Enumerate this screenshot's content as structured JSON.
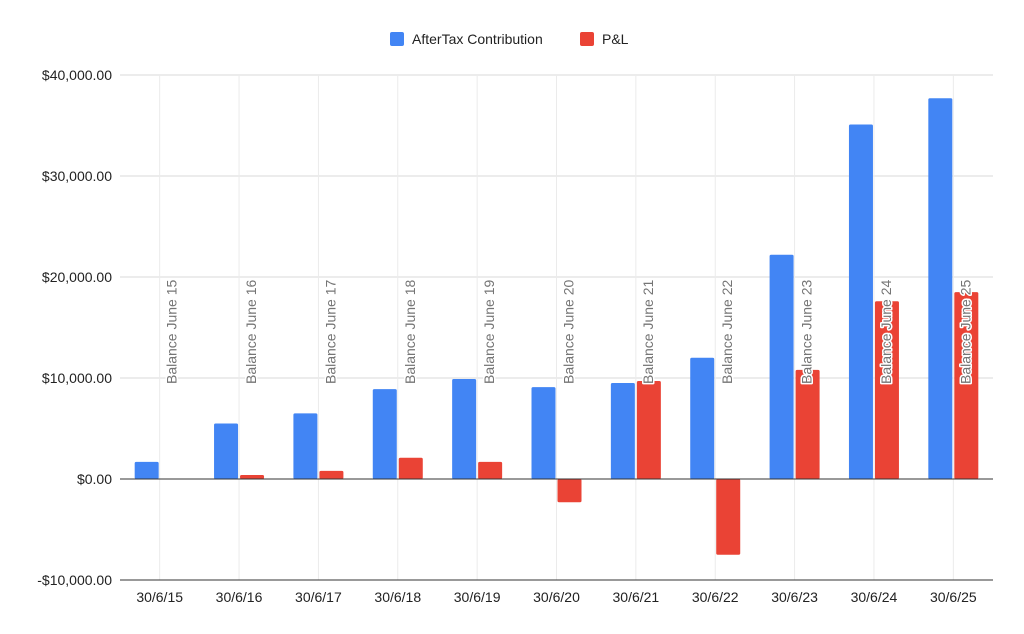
{
  "chart_data": {
    "type": "bar",
    "categories": [
      "30/6/15",
      "30/6/16",
      "30/6/17",
      "30/6/18",
      "30/6/19",
      "30/6/20",
      "30/6/21",
      "30/6/22",
      "30/6/23",
      "30/6/24",
      "30/6/25"
    ],
    "series": [
      {
        "name": "AfterTax Contribution",
        "color": "#4285F4",
        "values": [
          1700,
          5500,
          6500,
          8900,
          9900,
          9100,
          9500,
          12000,
          22200,
          35100,
          37700
        ]
      },
      {
        "name": "P&L",
        "color": "#EA4335",
        "values": [
          0,
          400,
          800,
          2100,
          1700,
          -2300,
          9700,
          -7500,
          10800,
          17600,
          18500
        ]
      }
    ],
    "annotations": [
      "Balance June 15",
      "Balance June 16",
      "Balance June 17",
      "Balance June 18",
      "Balance June 19",
      "Balance June 20",
      "Balance June 21",
      "Balance June 22",
      "Balance June 23",
      "Balance June 24",
      "Balance June 25"
    ],
    "y_ticks": [
      40000,
      30000,
      20000,
      10000,
      0,
      -10000
    ],
    "y_tick_labels": [
      "$40,000.00",
      "$30,000.00",
      "$20,000.00",
      "$10,000.00",
      "$0.00",
      "-$10,000.00"
    ],
    "ylim": [
      -10000,
      40000
    ],
    "title": "",
    "xlabel": "",
    "ylabel": "",
    "legend_position": "top",
    "grid": true
  }
}
